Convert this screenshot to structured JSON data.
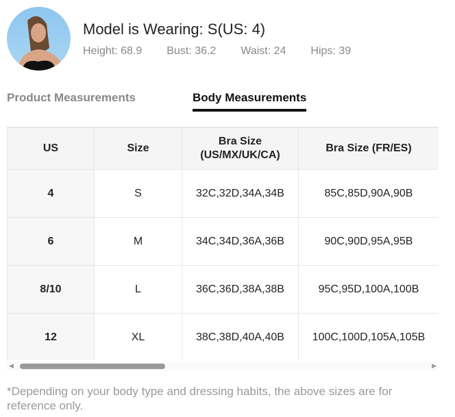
{
  "model": {
    "title": "Model is Wearing: S(US: 4)",
    "stats": [
      "Height: 68.9",
      "Bust: 36.2",
      "Waist: 24",
      "Hips: 39"
    ]
  },
  "tabs": [
    {
      "label": "Product Measurements",
      "active": false
    },
    {
      "label": "Body Measurements",
      "active": true
    }
  ],
  "table": {
    "headers": [
      "US",
      "Size",
      "Bra Size\n(US/MX/UK/CA)",
      "Bra Size (FR/ES)"
    ],
    "rows": [
      [
        "4",
        "S",
        "32C,32D,34A,34B",
        "85C,85D,90A,90B"
      ],
      [
        "6",
        "M",
        "34C,34D,36A,36B",
        "90C,90D,95A,95B"
      ],
      [
        "8/10",
        "L",
        "36C,36D,38A,38B",
        "95C,95D,100A,100B"
      ],
      [
        "12",
        "XL",
        "38C,38D,40A,40B",
        "100C,100D,105A,105B"
      ]
    ]
  },
  "note": "*Depending on your body type and dressing habits, the above sizes are for reference only."
}
